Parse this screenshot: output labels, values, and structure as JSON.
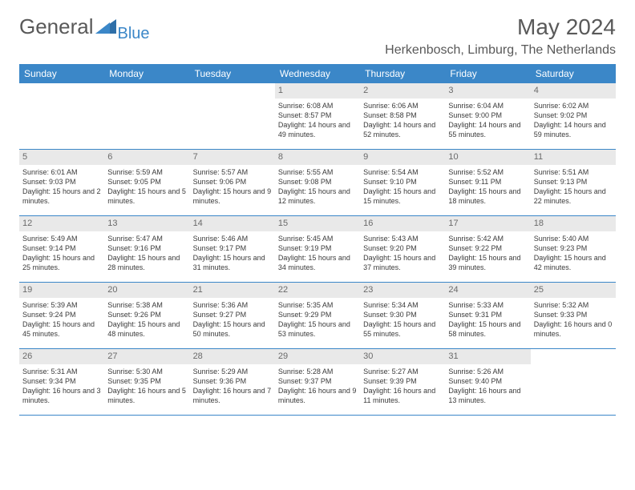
{
  "logo": {
    "text1": "General",
    "text2": "Blue"
  },
  "title": "May 2024",
  "location": "Herkenbosch, Limburg, The Netherlands",
  "colors": {
    "header_bg": "#3b87c8",
    "header_text": "#ffffff",
    "daynum_bg": "#e9e9e9",
    "daynum_text": "#6a6a6a",
    "body_text": "#3a3a3a",
    "title_text": "#595959",
    "row_border": "#3b87c8"
  },
  "day_names": [
    "Sunday",
    "Monday",
    "Tuesday",
    "Wednesday",
    "Thursday",
    "Friday",
    "Saturday"
  ],
  "weeks": [
    [
      {
        "n": "",
        "sr": "",
        "ss": "",
        "dl": ""
      },
      {
        "n": "",
        "sr": "",
        "ss": "",
        "dl": ""
      },
      {
        "n": "",
        "sr": "",
        "ss": "",
        "dl": ""
      },
      {
        "n": "1",
        "sr": "Sunrise: 6:08 AM",
        "ss": "Sunset: 8:57 PM",
        "dl": "Daylight: 14 hours and 49 minutes."
      },
      {
        "n": "2",
        "sr": "Sunrise: 6:06 AM",
        "ss": "Sunset: 8:58 PM",
        "dl": "Daylight: 14 hours and 52 minutes."
      },
      {
        "n": "3",
        "sr": "Sunrise: 6:04 AM",
        "ss": "Sunset: 9:00 PM",
        "dl": "Daylight: 14 hours and 55 minutes."
      },
      {
        "n": "4",
        "sr": "Sunrise: 6:02 AM",
        "ss": "Sunset: 9:02 PM",
        "dl": "Daylight: 14 hours and 59 minutes."
      }
    ],
    [
      {
        "n": "5",
        "sr": "Sunrise: 6:01 AM",
        "ss": "Sunset: 9:03 PM",
        "dl": "Daylight: 15 hours and 2 minutes."
      },
      {
        "n": "6",
        "sr": "Sunrise: 5:59 AM",
        "ss": "Sunset: 9:05 PM",
        "dl": "Daylight: 15 hours and 5 minutes."
      },
      {
        "n": "7",
        "sr": "Sunrise: 5:57 AM",
        "ss": "Sunset: 9:06 PM",
        "dl": "Daylight: 15 hours and 9 minutes."
      },
      {
        "n": "8",
        "sr": "Sunrise: 5:55 AM",
        "ss": "Sunset: 9:08 PM",
        "dl": "Daylight: 15 hours and 12 minutes."
      },
      {
        "n": "9",
        "sr": "Sunrise: 5:54 AM",
        "ss": "Sunset: 9:10 PM",
        "dl": "Daylight: 15 hours and 15 minutes."
      },
      {
        "n": "10",
        "sr": "Sunrise: 5:52 AM",
        "ss": "Sunset: 9:11 PM",
        "dl": "Daylight: 15 hours and 18 minutes."
      },
      {
        "n": "11",
        "sr": "Sunrise: 5:51 AM",
        "ss": "Sunset: 9:13 PM",
        "dl": "Daylight: 15 hours and 22 minutes."
      }
    ],
    [
      {
        "n": "12",
        "sr": "Sunrise: 5:49 AM",
        "ss": "Sunset: 9:14 PM",
        "dl": "Daylight: 15 hours and 25 minutes."
      },
      {
        "n": "13",
        "sr": "Sunrise: 5:47 AM",
        "ss": "Sunset: 9:16 PM",
        "dl": "Daylight: 15 hours and 28 minutes."
      },
      {
        "n": "14",
        "sr": "Sunrise: 5:46 AM",
        "ss": "Sunset: 9:17 PM",
        "dl": "Daylight: 15 hours and 31 minutes."
      },
      {
        "n": "15",
        "sr": "Sunrise: 5:45 AM",
        "ss": "Sunset: 9:19 PM",
        "dl": "Daylight: 15 hours and 34 minutes."
      },
      {
        "n": "16",
        "sr": "Sunrise: 5:43 AM",
        "ss": "Sunset: 9:20 PM",
        "dl": "Daylight: 15 hours and 37 minutes."
      },
      {
        "n": "17",
        "sr": "Sunrise: 5:42 AM",
        "ss": "Sunset: 9:22 PM",
        "dl": "Daylight: 15 hours and 39 minutes."
      },
      {
        "n": "18",
        "sr": "Sunrise: 5:40 AM",
        "ss": "Sunset: 9:23 PM",
        "dl": "Daylight: 15 hours and 42 minutes."
      }
    ],
    [
      {
        "n": "19",
        "sr": "Sunrise: 5:39 AM",
        "ss": "Sunset: 9:24 PM",
        "dl": "Daylight: 15 hours and 45 minutes."
      },
      {
        "n": "20",
        "sr": "Sunrise: 5:38 AM",
        "ss": "Sunset: 9:26 PM",
        "dl": "Daylight: 15 hours and 48 minutes."
      },
      {
        "n": "21",
        "sr": "Sunrise: 5:36 AM",
        "ss": "Sunset: 9:27 PM",
        "dl": "Daylight: 15 hours and 50 minutes."
      },
      {
        "n": "22",
        "sr": "Sunrise: 5:35 AM",
        "ss": "Sunset: 9:29 PM",
        "dl": "Daylight: 15 hours and 53 minutes."
      },
      {
        "n": "23",
        "sr": "Sunrise: 5:34 AM",
        "ss": "Sunset: 9:30 PM",
        "dl": "Daylight: 15 hours and 55 minutes."
      },
      {
        "n": "24",
        "sr": "Sunrise: 5:33 AM",
        "ss": "Sunset: 9:31 PM",
        "dl": "Daylight: 15 hours and 58 minutes."
      },
      {
        "n": "25",
        "sr": "Sunrise: 5:32 AM",
        "ss": "Sunset: 9:33 PM",
        "dl": "Daylight: 16 hours and 0 minutes."
      }
    ],
    [
      {
        "n": "26",
        "sr": "Sunrise: 5:31 AM",
        "ss": "Sunset: 9:34 PM",
        "dl": "Daylight: 16 hours and 3 minutes."
      },
      {
        "n": "27",
        "sr": "Sunrise: 5:30 AM",
        "ss": "Sunset: 9:35 PM",
        "dl": "Daylight: 16 hours and 5 minutes."
      },
      {
        "n": "28",
        "sr": "Sunrise: 5:29 AM",
        "ss": "Sunset: 9:36 PM",
        "dl": "Daylight: 16 hours and 7 minutes."
      },
      {
        "n": "29",
        "sr": "Sunrise: 5:28 AM",
        "ss": "Sunset: 9:37 PM",
        "dl": "Daylight: 16 hours and 9 minutes."
      },
      {
        "n": "30",
        "sr": "Sunrise: 5:27 AM",
        "ss": "Sunset: 9:39 PM",
        "dl": "Daylight: 16 hours and 11 minutes."
      },
      {
        "n": "31",
        "sr": "Sunrise: 5:26 AM",
        "ss": "Sunset: 9:40 PM",
        "dl": "Daylight: 16 hours and 13 minutes."
      },
      {
        "n": "",
        "sr": "",
        "ss": "",
        "dl": ""
      }
    ]
  ]
}
